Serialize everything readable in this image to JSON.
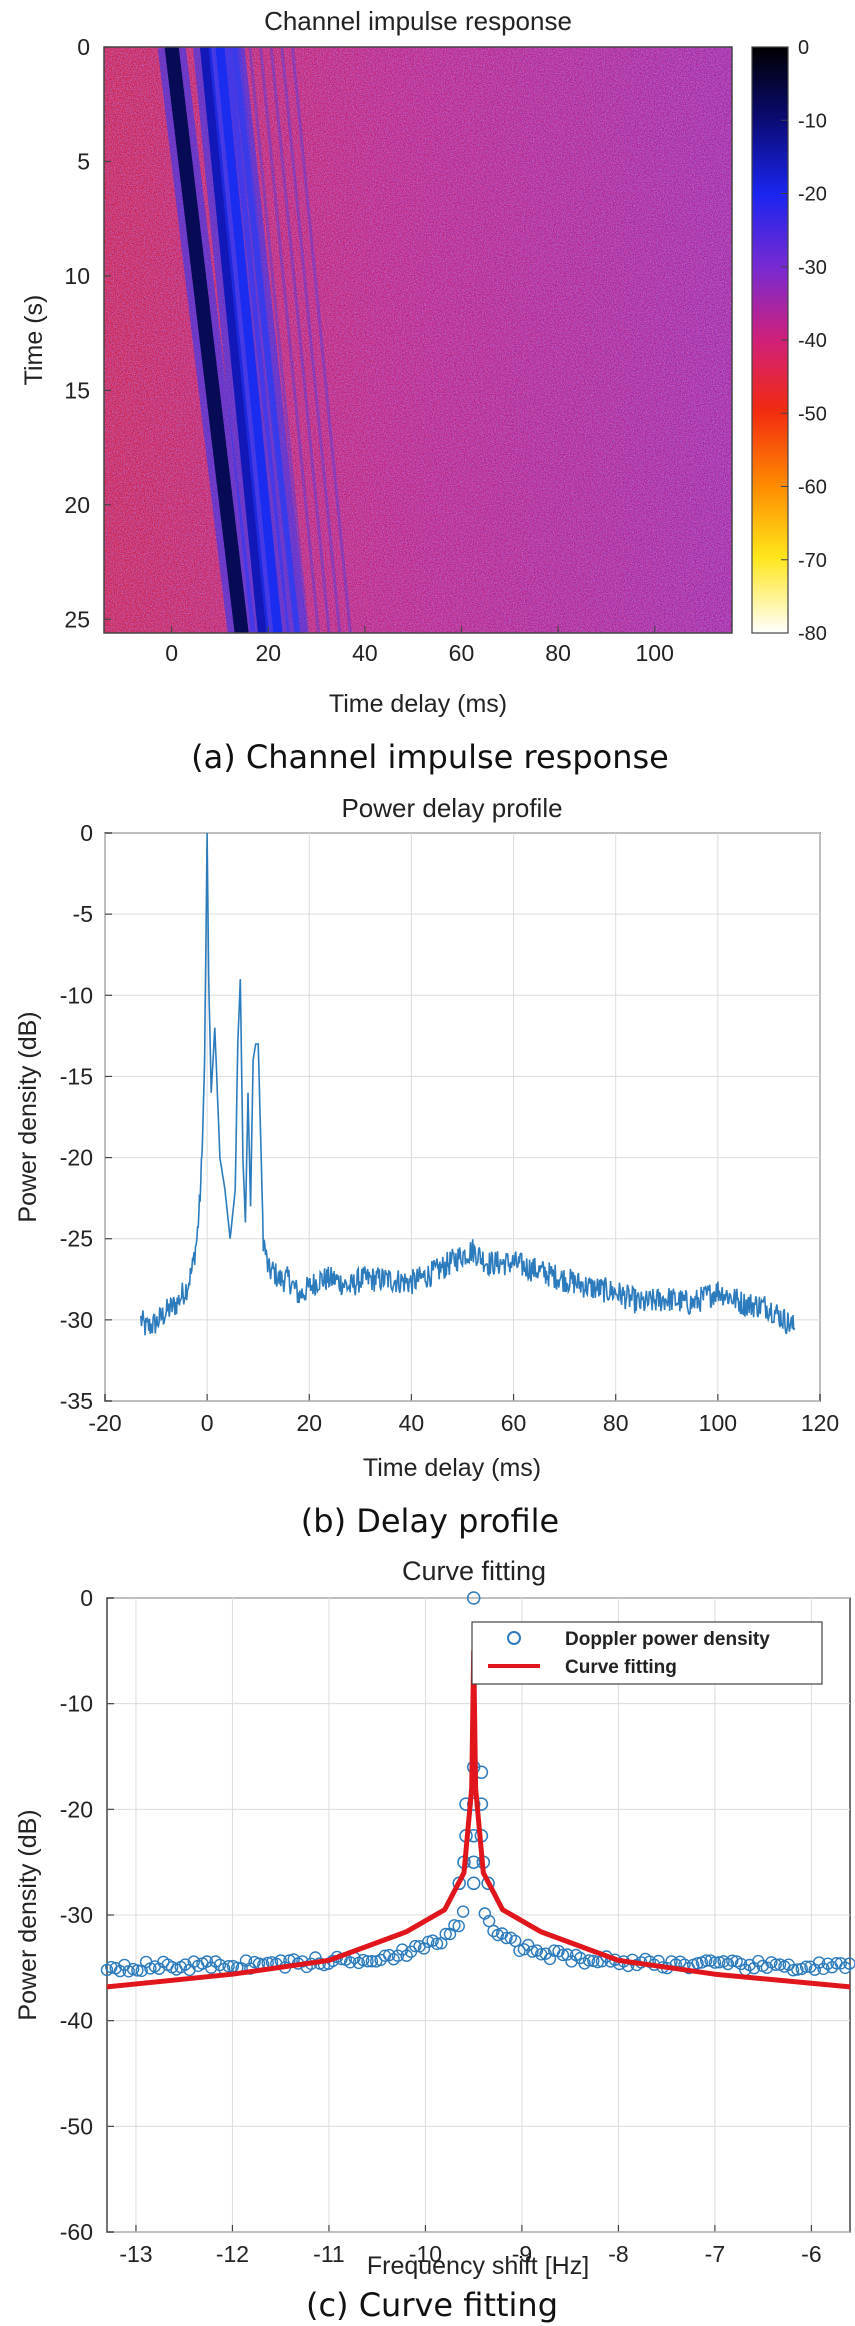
{
  "chart_data": [
    {
      "type": "heatmap",
      "title": "Channel impulse response",
      "xlabel": "Time delay (ms)",
      "ylabel": "Time (s)",
      "caption": "(a) Channel impulse response",
      "xlim": [
        -14,
        116
      ],
      "ylim": [
        0,
        25.6
      ],
      "x_ticks": [
        0,
        20,
        40,
        60,
        80,
        100
      ],
      "y_ticks": [
        0,
        5,
        10,
        15,
        20,
        25
      ],
      "colorbar": {
        "ticks": [
          0,
          -10,
          -20,
          -30,
          -40,
          -50,
          -60,
          -70,
          -80
        ],
        "range": [
          -80,
          0
        ]
      },
      "colors": {
        "noise_red": "#d4203a",
        "noise_purple": "#7a2ab0",
        "noise_blue": "#3a33d8",
        "path_dark": "#070a55",
        "path_blue": "#1a2cf0"
      },
      "paths": [
        {
          "delay_at_t0": 0,
          "delay_at_tend": 14.5,
          "level": -5
        },
        {
          "delay_at_t0": 7,
          "delay_at_tend": 19,
          "level": -10
        },
        {
          "delay_at_t0": 10,
          "delay_at_tend": 22,
          "level": -15
        },
        {
          "delay_at_t0": 13,
          "delay_at_tend": 26,
          "level": -25
        }
      ]
    },
    {
      "type": "line",
      "title": "Power delay profile",
      "xlabel": "Time delay (ms)",
      "ylabel": "Power density (dB)",
      "caption": "(b) Delay profile",
      "xlim": [
        -20,
        120
      ],
      "ylim": [
        -35,
        0
      ],
      "x_ticks": [
        -20,
        0,
        20,
        40,
        60,
        80,
        100,
        120
      ],
      "y_ticks": [
        0,
        -5,
        -10,
        -15,
        -20,
        -25,
        -30,
        -35
      ],
      "grid": true,
      "line_color": "#2b7bbd",
      "x": [
        -13,
        -12,
        -10,
        -8,
        -6,
        -4,
        -3,
        -2,
        -1.5,
        -1,
        -0.5,
        0,
        0.3,
        0.8,
        1.5,
        2.5,
        3.5,
        4.5,
        5.5,
        6,
        6.5,
        7,
        7.5,
        8,
        8.5,
        9,
        9.5,
        10,
        10.5,
        11,
        12,
        13,
        14,
        16,
        18,
        20,
        22,
        25,
        28,
        30,
        35,
        40,
        45,
        50,
        52,
        55,
        60,
        65,
        70,
        75,
        80,
        85,
        90,
        95,
        100,
        102,
        105,
        110,
        113,
        115
      ],
      "y": [
        -30,
        -30.5,
        -30.2,
        -29.5,
        -29,
        -28,
        -27,
        -25,
        -23,
        -20,
        -14,
        0,
        -9,
        -16,
        -12,
        -20,
        -22,
        -25,
        -22,
        -13,
        -9,
        -20,
        -24,
        -16,
        -23,
        -14,
        -13,
        -13,
        -19,
        -25,
        -27,
        -27,
        -27.5,
        -27.5,
        -28.5,
        -28,
        -27.5,
        -27.5,
        -28,
        -27.5,
        -27.5,
        -27.7,
        -27,
        -26,
        -25.7,
        -26.5,
        -26.5,
        -27,
        -27.5,
        -28,
        -28.3,
        -29,
        -28.7,
        -29,
        -28.2,
        -28.5,
        -29,
        -29.2,
        -30,
        -30.5
      ]
    },
    {
      "type": "scatter",
      "title": "Curve fitting",
      "xlabel": "Frequency shift [Hz]",
      "ylabel": "Power density (dB)",
      "caption": "(c) Curve fitting",
      "xlim": [
        -13.3,
        -5.6
      ],
      "ylim": [
        -60,
        0
      ],
      "x_ticks": [
        -13,
        -12,
        -11,
        -10,
        -9,
        -8,
        -7,
        -6
      ],
      "y_ticks": [
        0,
        -10,
        -20,
        -30,
        -40,
        -50,
        -60
      ],
      "grid": true,
      "legend_position": "top-right",
      "series": [
        {
          "name": "Doppler power density",
          "marker": "circle",
          "color": "#2b7bbd",
          "peak": -9.5,
          "floor": -35.3,
          "points": [
            [
              -9.5,
              0
            ],
            [
              -9.5,
              -16
            ],
            [
              -9.5,
              -19.5
            ],
            [
              -9.5,
              -22.5
            ],
            [
              -9.5,
              -25
            ],
            [
              -9.5,
              -27
            ],
            [
              -9.42,
              -16.5
            ],
            [
              -9.42,
              -19.5
            ],
            [
              -9.42,
              -22.5
            ],
            [
              -9.58,
              -19.5
            ],
            [
              -9.58,
              -22.5
            ],
            [
              -9.4,
              -25
            ],
            [
              -9.6,
              -25
            ],
            [
              -9.35,
              -27
            ],
            [
              -9.65,
              -27
            ]
          ]
        },
        {
          "name": "Curve fitting",
          "color": "#e0161c",
          "peak": -9.5,
          "levels": {
            "-13.3": -36.8,
            "-12": -35.6,
            "-11": -34.3,
            "-10.2": -31.6,
            "-9.8": -29.5,
            "-9.6": -26,
            "-9.52": -18,
            "-9.5": -5,
            "-9.48": -18,
            "-9.4": -26,
            "-9.2": -29.5,
            "-8.8": -31.6,
            "-8": -34.3,
            "-7": -35.6,
            "-5.6": -36.8
          }
        }
      ]
    }
  ]
}
